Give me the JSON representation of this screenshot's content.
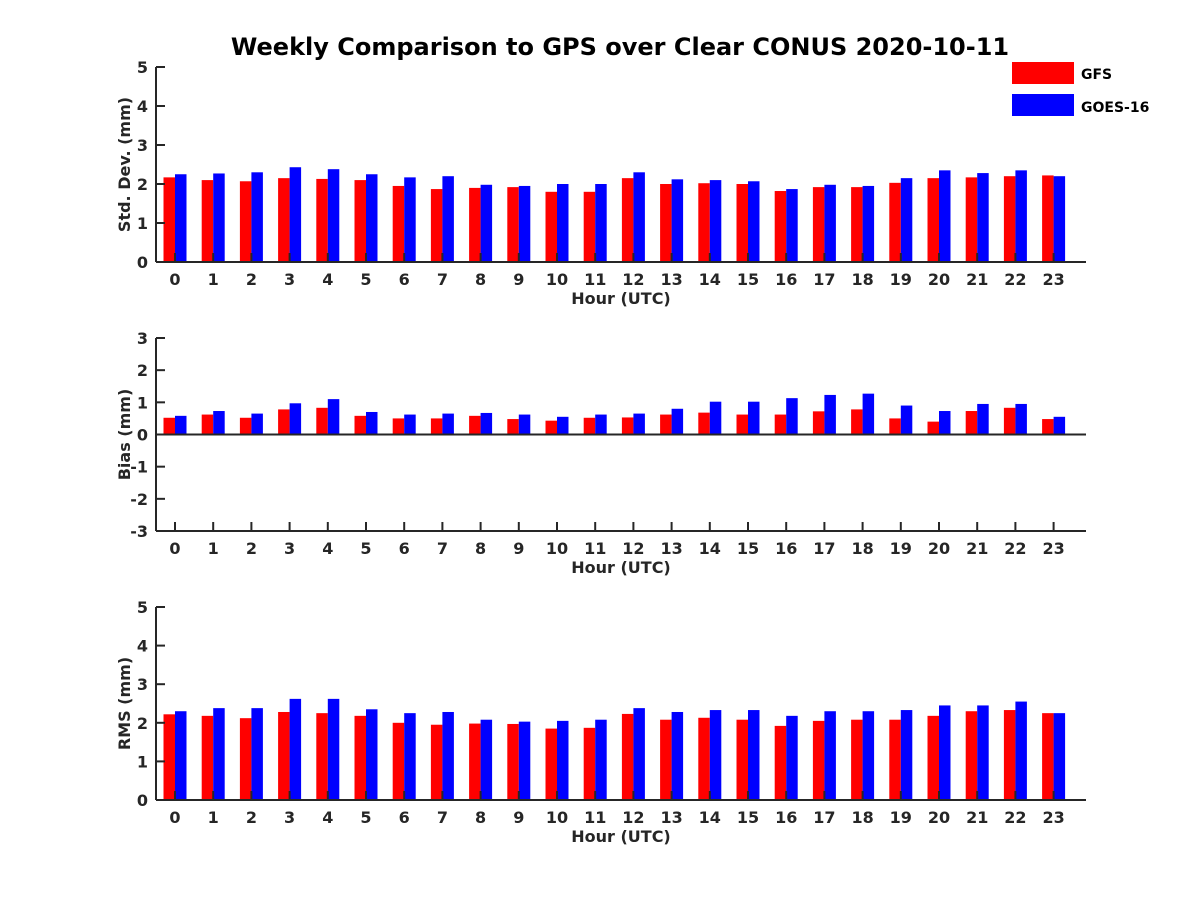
{
  "title": "Weekly Comparison to GPS over Clear CONUS 2020-10-11",
  "colors": {
    "GFS": "#ff0000",
    "GOES-16": "#0000ff",
    "axis": "#262626"
  },
  "legend": [
    "GFS",
    "GOES-16"
  ],
  "chart_data": [
    {
      "type": "bar",
      "categories": [
        "0",
        "1",
        "2",
        "3",
        "4",
        "5",
        "6",
        "7",
        "8",
        "9",
        "10",
        "11",
        "12",
        "13",
        "14",
        "15",
        "16",
        "17",
        "18",
        "19",
        "20",
        "21",
        "22",
        "23"
      ],
      "xlabel": "Hour (UTC)",
      "ylabel": "Std. Dev. (mm)",
      "ylim": [
        0,
        5
      ],
      "yticks": [
        "0",
        "1",
        "2",
        "3",
        "4",
        "5"
      ],
      "series": [
        {
          "name": "GFS",
          "values": [
            2.17,
            2.1,
            2.07,
            2.15,
            2.13,
            2.1,
            1.95,
            1.87,
            1.9,
            1.92,
            1.8,
            1.8,
            2.15,
            2.0,
            2.02,
            2.0,
            1.82,
            1.92,
            1.92,
            2.03,
            2.15,
            2.17,
            2.2,
            2.22
          ]
        },
        {
          "name": "GOES-16",
          "values": [
            2.25,
            2.27,
            2.3,
            2.43,
            2.38,
            2.25,
            2.17,
            2.2,
            1.98,
            1.95,
            2.0,
            2.0,
            2.3,
            2.12,
            2.1,
            2.07,
            1.87,
            1.98,
            1.95,
            2.15,
            2.35,
            2.28,
            2.35,
            2.2
          ]
        }
      ]
    },
    {
      "type": "bar",
      "categories": [
        "0",
        "1",
        "2",
        "3",
        "4",
        "5",
        "6",
        "7",
        "8",
        "9",
        "10",
        "11",
        "12",
        "13",
        "14",
        "15",
        "16",
        "17",
        "18",
        "19",
        "20",
        "21",
        "22",
        "23"
      ],
      "xlabel": "Hour (UTC)",
      "ylabel": "Bias (mm)",
      "ylim": [
        -3,
        3
      ],
      "yticks": [
        "-3",
        "-2",
        "-1",
        "0",
        "1",
        "2",
        "3"
      ],
      "series": [
        {
          "name": "GFS",
          "values": [
            0.52,
            0.62,
            0.52,
            0.78,
            0.83,
            0.58,
            0.5,
            0.5,
            0.58,
            0.48,
            0.43,
            0.52,
            0.53,
            0.62,
            0.68,
            0.62,
            0.62,
            0.72,
            0.78,
            0.5,
            0.4,
            0.73,
            0.83,
            0.48
          ]
        },
        {
          "name": "GOES-16",
          "values": [
            0.58,
            0.73,
            0.65,
            0.97,
            1.1,
            0.7,
            0.62,
            0.65,
            0.67,
            0.62,
            0.55,
            0.62,
            0.65,
            0.8,
            1.02,
            1.02,
            1.13,
            1.23,
            1.27,
            0.9,
            0.73,
            0.95,
            0.95,
            0.55
          ]
        }
      ]
    },
    {
      "type": "bar",
      "categories": [
        "0",
        "1",
        "2",
        "3",
        "4",
        "5",
        "6",
        "7",
        "8",
        "9",
        "10",
        "11",
        "12",
        "13",
        "14",
        "15",
        "16",
        "17",
        "18",
        "19",
        "20",
        "21",
        "22",
        "23"
      ],
      "xlabel": "Hour (UTC)",
      "ylabel": "RMS (mm)",
      "ylim": [
        0,
        5
      ],
      "yticks": [
        "0",
        "1",
        "2",
        "3",
        "4",
        "5"
      ],
      "series": [
        {
          "name": "GFS",
          "values": [
            2.22,
            2.18,
            2.12,
            2.28,
            2.25,
            2.18,
            2.0,
            1.95,
            1.98,
            1.97,
            1.85,
            1.87,
            2.23,
            2.08,
            2.13,
            2.08,
            1.92,
            2.05,
            2.08,
            2.08,
            2.18,
            2.3,
            2.33,
            2.25
          ]
        },
        {
          "name": "GOES-16",
          "values": [
            2.3,
            2.38,
            2.38,
            2.62,
            2.62,
            2.35,
            2.25,
            2.28,
            2.08,
            2.03,
            2.05,
            2.08,
            2.38,
            2.28,
            2.33,
            2.33,
            2.18,
            2.3,
            2.3,
            2.33,
            2.45,
            2.45,
            2.55,
            2.25
          ]
        }
      ]
    }
  ]
}
